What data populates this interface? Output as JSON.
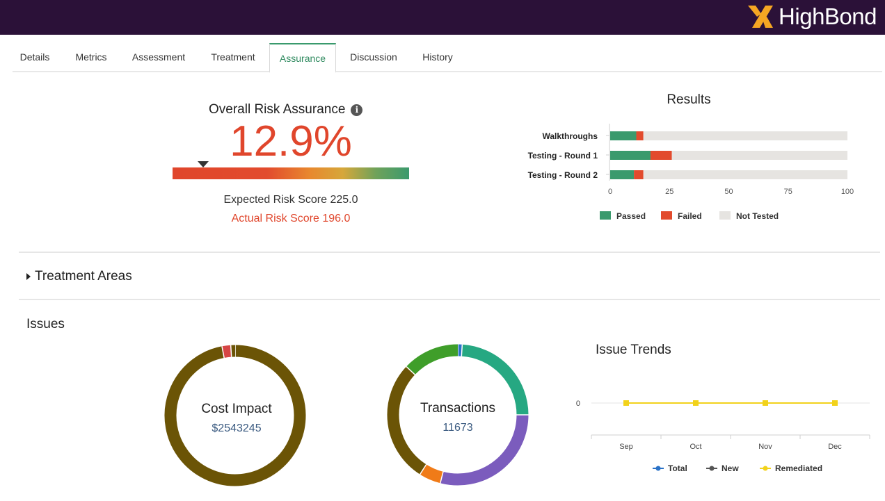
{
  "header": {
    "brand": "HighBond",
    "brand_color": "#2b1138",
    "logo_icon": "highbond-x-logo-icon"
  },
  "tabs": [
    {
      "label": "Details",
      "active": false
    },
    {
      "label": "Metrics",
      "active": false
    },
    {
      "label": "Assessment",
      "active": false
    },
    {
      "label": "Treatment",
      "active": false
    },
    {
      "label": "Assurance",
      "active": true
    },
    {
      "label": "Discussion",
      "active": false
    },
    {
      "label": "History",
      "active": false
    }
  ],
  "assurance": {
    "title": "Overall Risk Assurance",
    "info_icon": "i",
    "percent": "12.9%",
    "gauge_marker_fraction": 0.129,
    "expected_score": "Expected Risk Score 225.0",
    "actual_score": "Actual Risk Score 196.0"
  },
  "results": {
    "title": "Results",
    "chart_data": {
      "type": "bar",
      "orientation": "horizontal",
      "stacked": true,
      "categories": [
        "Walkthroughs",
        "Testing - Round 1",
        "Testing - Round 2"
      ],
      "series": [
        {
          "name": "Passed",
          "color": "#3a9a6d",
          "values": [
            11,
            17,
            10
          ]
        },
        {
          "name": "Failed",
          "color": "#e24b2d",
          "values": [
            3,
            9,
            4
          ]
        },
        {
          "name": "Not Tested",
          "color": "#e6e4e1",
          "values": [
            86,
            74,
            86
          ]
        }
      ],
      "xticks": [
        "0",
        "25",
        "50",
        "75",
        "100"
      ],
      "xlim": [
        0,
        100
      ],
      "legend_position": "bottom"
    }
  },
  "treatment_areas": {
    "label": "Treatment Areas"
  },
  "issues": {
    "title": "Issues",
    "cost_donut": {
      "label": "Cost Impact",
      "value": "$2543245",
      "chart_data": {
        "type": "pie",
        "donut": true,
        "slices": [
          {
            "color": "#6b5406",
            "value": 97
          },
          {
            "color": "#d64545",
            "value": 2
          },
          {
            "color": "#6b5406",
            "value": 1
          }
        ]
      }
    },
    "transactions_donut": {
      "label": "Transactions",
      "value": "11673",
      "chart_data": {
        "type": "pie",
        "donut": true,
        "slices": [
          {
            "color": "#2a72c7",
            "value": 1
          },
          {
            "color": "#26a882",
            "value": 24
          },
          {
            "color": "#7b5cbd",
            "value": 29
          },
          {
            "color": "#f07b18",
            "value": 5
          },
          {
            "color": "#6b5406",
            "value": 28
          },
          {
            "color": "#3f9e2a",
            "value": 13
          }
        ]
      }
    },
    "trends": {
      "title": "Issue Trends",
      "chart_data": {
        "type": "line",
        "categories": [
          "Sep",
          "Oct",
          "Nov",
          "Dec"
        ],
        "yticks": [
          "0"
        ],
        "series": [
          {
            "name": "Total",
            "color": "#2a72c7",
            "values": [
              0,
              0,
              0,
              0
            ]
          },
          {
            "name": "New",
            "color": "#555555",
            "values": [
              0,
              0,
              0,
              0
            ]
          },
          {
            "name": "Remediated",
            "color": "#f2d21b",
            "values": [
              0,
              0,
              0,
              0
            ]
          }
        ],
        "legend_position": "bottom"
      }
    }
  }
}
